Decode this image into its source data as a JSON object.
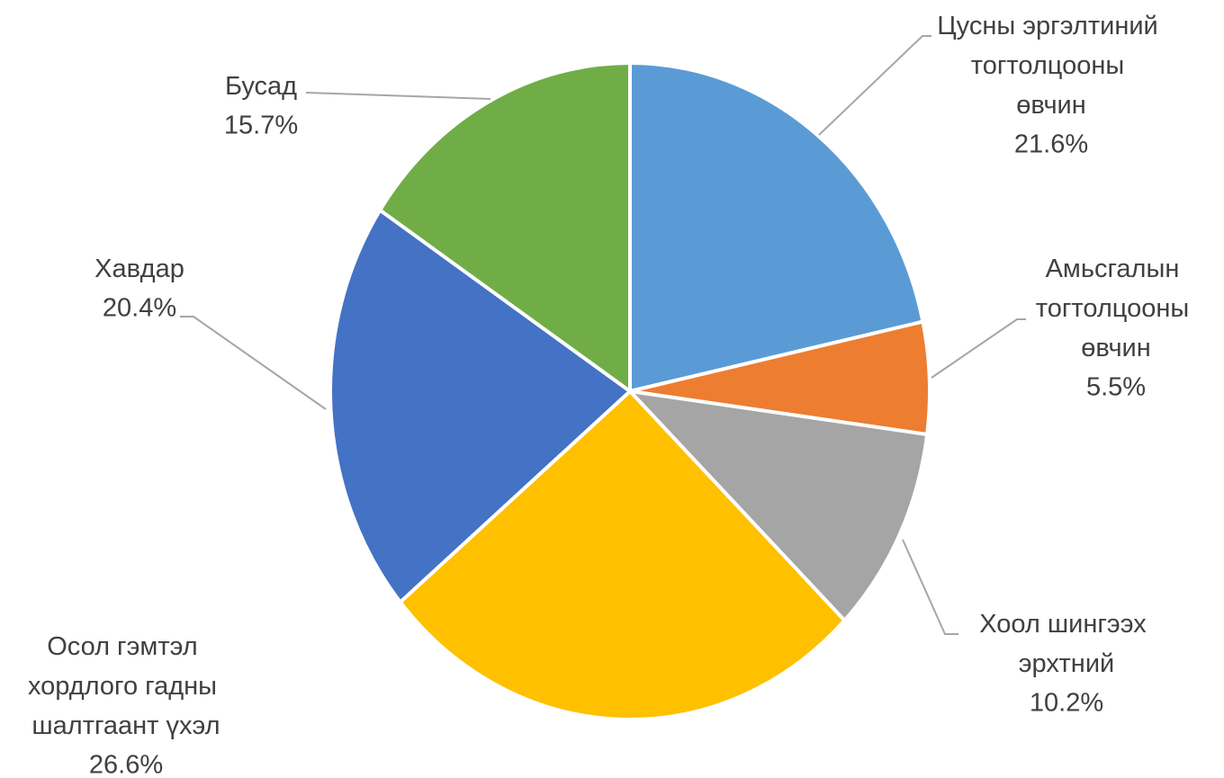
{
  "chart_data": {
    "type": "pie",
    "categories": [
      "Цусны эргэлтиний тогтолцооны өвчин",
      "Амьсгалын тогтолцооны өвчин",
      "Хоол шингээх эрхтний өвчин",
      "Осол гэмтэл хордлого гадны шалтгаант үхэл",
      "Хавдар",
      "Бусад"
    ],
    "values": [
      21.6,
      5.5,
      10.2,
      26.6,
      20.4,
      15.7
    ],
    "value_labels": [
      "21.6%",
      "5.5%",
      "10.2%",
      "26.6%",
      "20.4%",
      "15.7%"
    ],
    "colors": [
      "#5b9bd5",
      "#ed7d31",
      "#a5a5a5",
      "#ffc000",
      "#4472c4",
      "#70ad47"
    ]
  }
}
